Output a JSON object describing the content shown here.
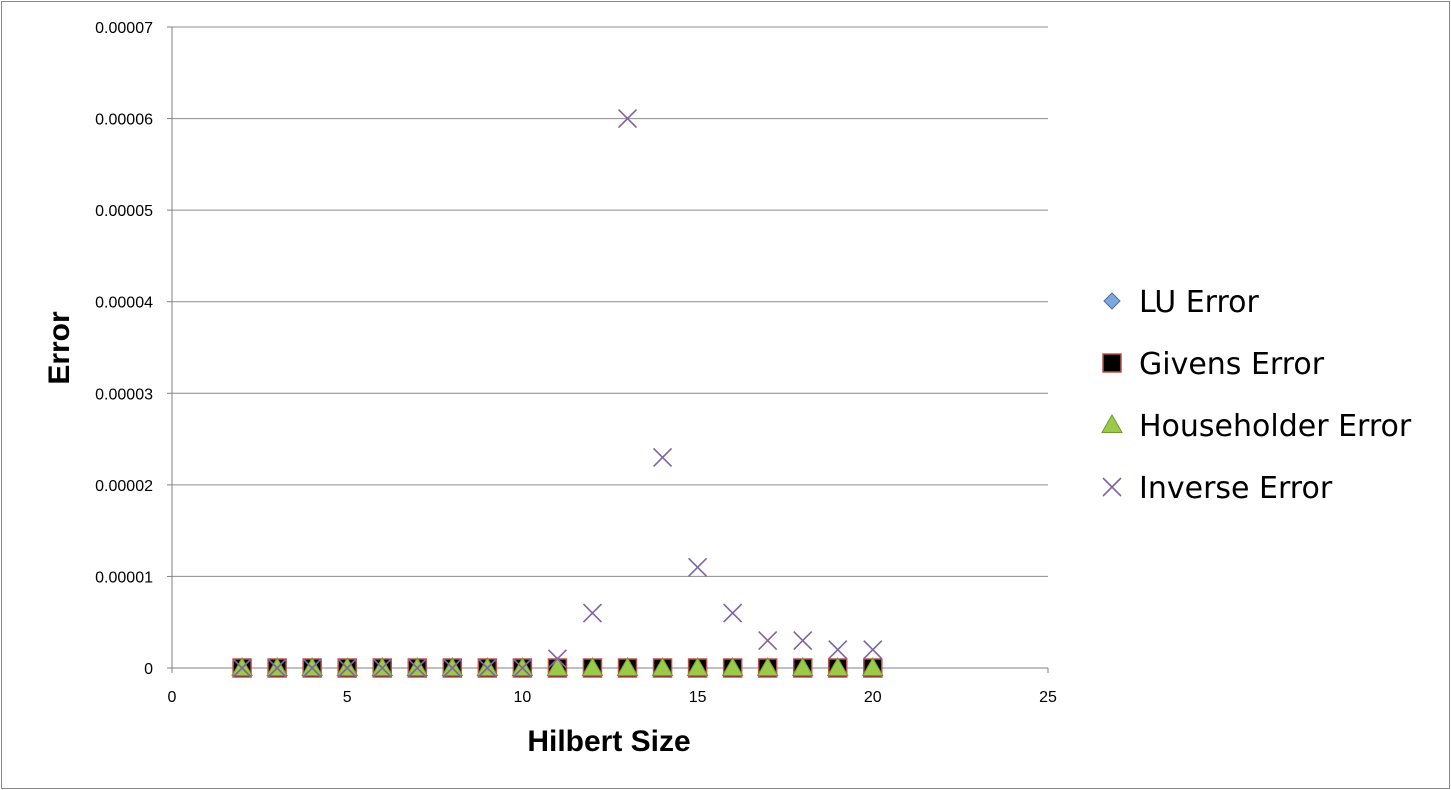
{
  "chart_data": {
    "type": "scatter",
    "title": "",
    "xlabel": "Hilbert Size",
    "ylabel": "Error",
    "xlim": [
      0,
      25
    ],
    "ylim": [
      0,
      7e-05
    ],
    "x_ticks": [
      0,
      5,
      10,
      15,
      20,
      25
    ],
    "y_ticks": [
      0,
      1e-05,
      2e-05,
      3e-05,
      4e-05,
      5e-05,
      6e-05,
      7e-05
    ],
    "x_tick_labels": [
      "0",
      "5",
      "10",
      "15",
      "20",
      "25"
    ],
    "y_tick_labels": [
      "0",
      "0.00001",
      "0.00002",
      "0.00003",
      "0.00004",
      "0.00005",
      "0.00006",
      "0.00007"
    ],
    "grid": "horizontal",
    "legend_position": "right",
    "x": [
      2,
      3,
      4,
      5,
      6,
      7,
      8,
      9,
      10,
      11,
      12,
      13,
      14,
      15,
      16,
      17,
      18,
      19,
      20
    ],
    "series": [
      {
        "name": "LU Error",
        "marker": "diamond",
        "color": "#7FA7DC",
        "values": [
          0,
          0,
          0,
          0,
          0,
          0,
          0,
          0,
          0,
          0,
          0,
          0,
          0,
          0,
          0,
          0,
          0,
          0,
          0
        ]
      },
      {
        "name": "Givens Error",
        "marker": "square",
        "color": "#000000",
        "edge_color": "#C0504D",
        "values": [
          0,
          0,
          0,
          0,
          0,
          0,
          0,
          0,
          0,
          0,
          0,
          0,
          0,
          0,
          0,
          0,
          0,
          0,
          0
        ]
      },
      {
        "name": "Householder Error",
        "marker": "triangle",
        "color": "#9BC94A",
        "values": [
          0,
          0,
          0,
          0,
          0,
          0,
          0,
          0,
          0,
          0,
          0,
          0,
          0,
          0,
          0,
          0,
          0,
          0,
          0
        ]
      },
      {
        "name": "Inverse Error",
        "marker": "x",
        "color": "#8064A2",
        "values": [
          0,
          0,
          0,
          0,
          0,
          0,
          0,
          0,
          0,
          1e-06,
          6e-06,
          6e-05,
          2.3e-05,
          1.1e-05,
          6e-06,
          3e-06,
          3e-06,
          2e-06,
          2e-06
        ]
      }
    ]
  }
}
